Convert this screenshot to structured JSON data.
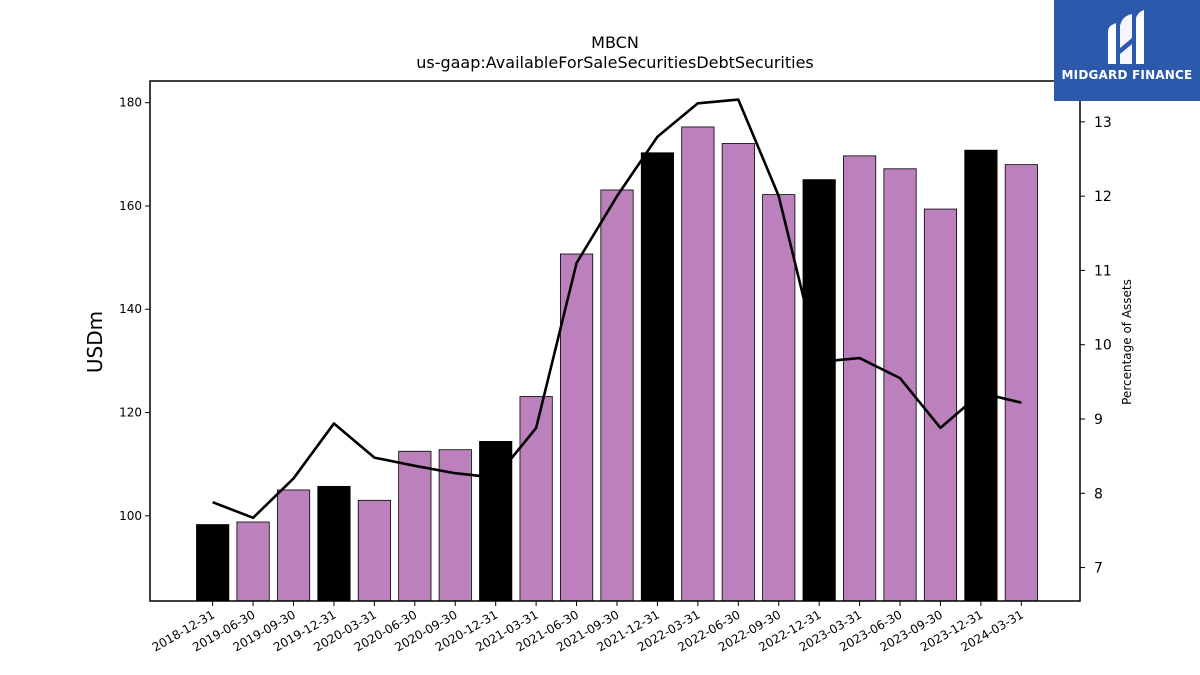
{
  "logo": {
    "text": "MIDGARD FINANCE"
  },
  "chart_data": {
    "type": "bar",
    "title": "MBCN",
    "subtitle": "us-gaap:AvailableForSaleSecuritiesDebtSecurities",
    "ylabel": "USDm",
    "y2label": "Percentage of Assets",
    "ylim": [
      83.5,
      184.2
    ],
    "y2lim": [
      6.55,
      13.55
    ],
    "yticks": [
      100,
      120,
      140,
      160,
      180
    ],
    "y2ticks": [
      7,
      8,
      9,
      10,
      11,
      12,
      13
    ],
    "categories": [
      "2018-12-31",
      "2019-06-30",
      "2019-09-30",
      "2019-12-31",
      "2020-03-31",
      "2020-06-30",
      "2020-09-30",
      "2020-12-31",
      "2021-03-31",
      "2021-06-30",
      "2021-09-30",
      "2021-12-31",
      "2022-03-31",
      "2022-06-30",
      "2022-09-30",
      "2022-12-31",
      "2023-03-31",
      "2023-06-30",
      "2023-09-30",
      "2023-12-31",
      "2024-03-31"
    ],
    "values": [
      98.3,
      98.8,
      105.0,
      105.7,
      103.0,
      112.5,
      112.8,
      114.4,
      123.1,
      150.7,
      163.1,
      170.3,
      175.3,
      172.1,
      162.2,
      165.1,
      169.7,
      167.2,
      159.4,
      170.8,
      168.0
    ],
    "bar_colors": [
      "#000000",
      "#bc80bd",
      "#bc80bd",
      "#000000",
      "#bc80bd",
      "#bc80bd",
      "#bc80bd",
      "#000000",
      "#bc80bd",
      "#bc80bd",
      "#bc80bd",
      "#000000",
      "#bc80bd",
      "#bc80bd",
      "#bc80bd",
      "#000000",
      "#bc80bd",
      "#bc80bd",
      "#bc80bd",
      "#000000",
      "#bc80bd"
    ],
    "line_series": {
      "values": [
        7.88,
        7.67,
        8.2,
        8.94,
        8.48,
        8.37,
        8.27,
        8.21,
        8.88,
        11.1,
        12.0,
        12.8,
        13.25,
        13.3,
        12.0,
        9.77,
        9.82,
        9.55,
        8.88,
        9.35,
        9.22
      ]
    },
    "legend": "none",
    "grid": false
  }
}
